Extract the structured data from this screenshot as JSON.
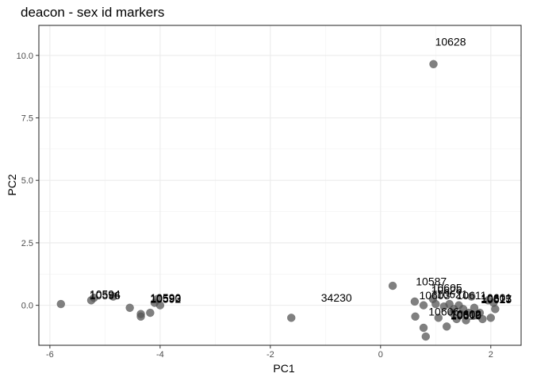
{
  "chart_data": {
    "type": "scatter",
    "title": "deacon - sex id markers",
    "xlabel": "PC1",
    "ylabel": "PC2",
    "xlim": [
      -6.2,
      2.55
    ],
    "ylim": [
      -1.6,
      11.2
    ],
    "xticks": [
      -6,
      -4,
      -2,
      0,
      2
    ],
    "xtick_labels": [
      "-6",
      "-4",
      "-2",
      "0",
      "2"
    ],
    "yticks": [
      0,
      2.5,
      5,
      7.5,
      10
    ],
    "ytick_labels": [
      "0.0",
      "2.5",
      "5.0",
      "7.5",
      "10.0"
    ],
    "grid": true,
    "point_color": "#555555",
    "points": [
      {
        "x": -5.8,
        "y": 0.05
      },
      {
        "x": -5.25,
        "y": 0.2
      },
      {
        "x": -5.2,
        "y": 0.3
      },
      {
        "x": -4.85,
        "y": 0.35
      },
      {
        "x": -4.55,
        "y": -0.1
      },
      {
        "x": -4.35,
        "y": -0.35
      },
      {
        "x": -4.35,
        "y": -0.45
      },
      {
        "x": -4.18,
        "y": -0.3
      },
      {
        "x": -4.1,
        "y": 0.1
      },
      {
        "x": -4.05,
        "y": 0.25
      },
      {
        "x": -4.0,
        "y": 0.0
      },
      {
        "x": -1.62,
        "y": -0.5
      },
      {
        "x": 0.22,
        "y": 0.78
      },
      {
        "x": 0.96,
        "y": 9.65
      },
      {
        "x": 0.62,
        "y": 0.15
      },
      {
        "x": 0.63,
        "y": -0.45
      },
      {
        "x": 0.78,
        "y": -0.9
      },
      {
        "x": 0.82,
        "y": -1.25
      },
      {
        "x": 0.78,
        "y": 0.0
      },
      {
        "x": 0.95,
        "y": 0.25
      },
      {
        "x": 1.0,
        "y": 0.05
      },
      {
        "x": 1.05,
        "y": -0.5
      },
      {
        "x": 1.15,
        "y": -0.05
      },
      {
        "x": 1.2,
        "y": -0.85
      },
      {
        "x": 1.25,
        "y": 0.05
      },
      {
        "x": 1.3,
        "y": -0.3
      },
      {
        "x": 1.33,
        "y": -0.15
      },
      {
        "x": 1.38,
        "y": -0.55
      },
      {
        "x": 1.42,
        "y": 0.0
      },
      {
        "x": 1.45,
        "y": -0.35
      },
      {
        "x": 1.5,
        "y": -0.15
      },
      {
        "x": 1.55,
        "y": -0.6
      },
      {
        "x": 1.6,
        "y": -0.3
      },
      {
        "x": 1.65,
        "y": 0.35
      },
      {
        "x": 1.7,
        "y": -0.1
      },
      {
        "x": 1.73,
        "y": -0.4
      },
      {
        "x": 1.8,
        "y": -0.3
      },
      {
        "x": 1.85,
        "y": -0.55
      },
      {
        "x": 1.95,
        "y": 0.2
      },
      {
        "x": 2.0,
        "y": -0.5
      },
      {
        "x": 2.05,
        "y": 0.1
      },
      {
        "x": 2.08,
        "y": -0.15
      }
    ],
    "labels": [
      {
        "text": "10628",
        "x": 1.27,
        "y": 10.55
      },
      {
        "text": "10594",
        "x": -5.0,
        "y": 0.45
      },
      {
        "text": "10596",
        "x": -5.0,
        "y": 0.4
      },
      {
        "text": "10590",
        "x": -3.9,
        "y": 0.3
      },
      {
        "text": "10593",
        "x": -3.9,
        "y": 0.28
      },
      {
        "text": "10592",
        "x": -3.9,
        "y": 0.26
      },
      {
        "text": "34230",
        "x": -0.8,
        "y": 0.3
      },
      {
        "text": "10587",
        "x": 0.92,
        "y": 0.95
      },
      {
        "text": "10605",
        "x": 1.2,
        "y": 0.7
      },
      {
        "text": "10626",
        "x": 1.2,
        "y": 0.6
      },
      {
        "text": "10621",
        "x": 1.3,
        "y": 0.45
      },
      {
        "text": "10603",
        "x": 0.98,
        "y": 0.4
      },
      {
        "text": "10611",
        "x": 1.65,
        "y": 0.4
      },
      {
        "text": "10601",
        "x": 2.1,
        "y": 0.3
      },
      {
        "text": "10613",
        "x": 2.1,
        "y": 0.28
      },
      {
        "text": "10617",
        "x": 2.1,
        "y": 0.26
      },
      {
        "text": "10625",
        "x": 2.1,
        "y": 0.24
      },
      {
        "text": "10606",
        "x": 1.15,
        "y": -0.25
      },
      {
        "text": "10602",
        "x": 1.55,
        "y": -0.35
      },
      {
        "text": "10609",
        "x": 1.55,
        "y": -0.38
      },
      {
        "text": "10610",
        "x": 1.55,
        "y": -0.41
      }
    ]
  }
}
